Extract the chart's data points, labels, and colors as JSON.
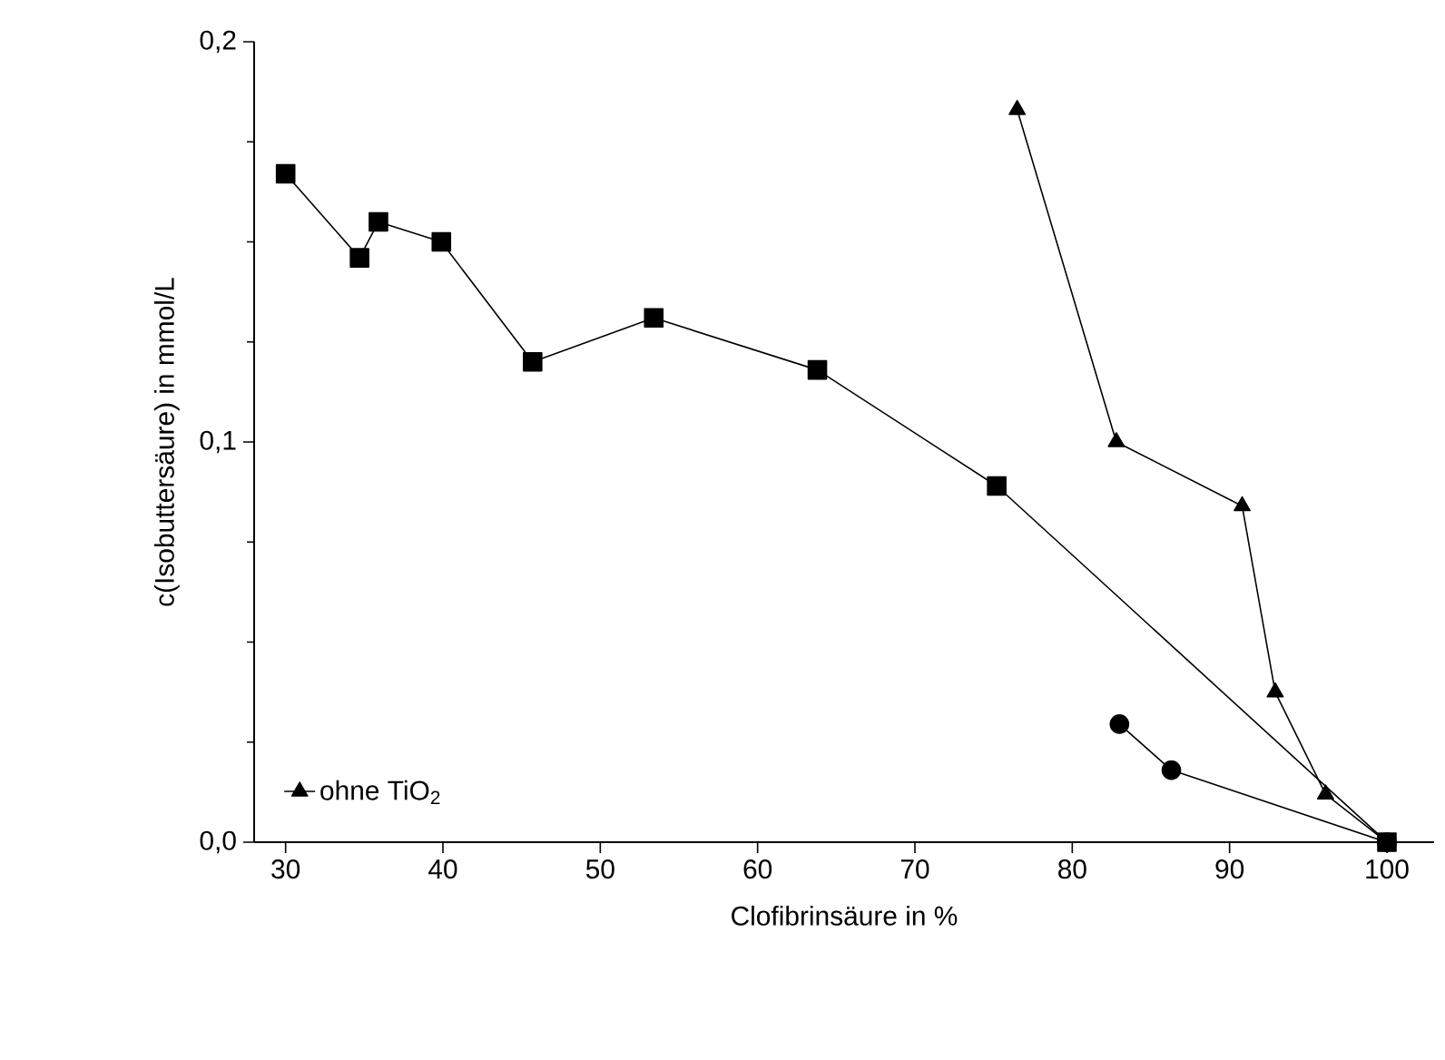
{
  "chart_data": {
    "type": "line",
    "xlabel": "Clofibrinsäure in %",
    "ylabel": "c(Isobuttersäure) in mmol/L",
    "xlim": [
      28,
      103
    ],
    "xticks": [
      30,
      40,
      50,
      60,
      70,
      80,
      90,
      100
    ],
    "ylim": [
      0,
      0.2
    ],
    "yticks": [
      {
        "value": 0,
        "label": "0,0"
      },
      {
        "value": 0.1,
        "label": "0,1"
      },
      {
        "value": 0.2,
        "label": "0,2"
      }
    ],
    "grid": false,
    "legend": "bottom left",
    "line_style": "solid",
    "series": [
      {
        "color": "#000000",
        "marker": "square",
        "x": [
          30,
          34.7,
          35.9,
          39.9,
          45.7,
          53.4,
          63.8,
          75.2,
          100
        ],
        "values": [
          0.167,
          0.146,
          0.155,
          0.15,
          0.12,
          0.131,
          0.118,
          0.089,
          0
        ]
      },
      {
        "color": "#000000",
        "marker": "circle",
        "x": [
          83,
          86.3,
          100
        ],
        "values": [
          0.0295,
          0.018,
          0
        ]
      },
      {
        "name": "ohne TiO$_{2}$",
        "color": "#000000",
        "marker": "triangle",
        "x": [
          76.5,
          82.8,
          90.8,
          92.9,
          96.1,
          100
        ],
        "values": [
          0.183,
          0.1,
          0.084,
          0.0375,
          0.012,
          0
        ]
      }
    ]
  }
}
